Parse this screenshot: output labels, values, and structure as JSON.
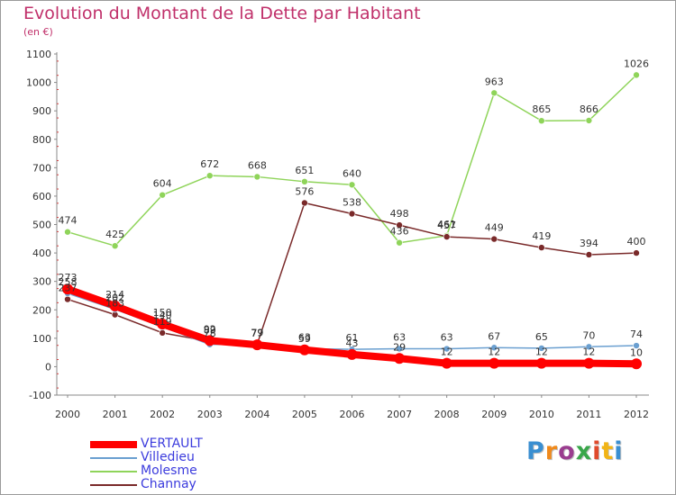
{
  "title": "Evolution du Montant de la Dette par Habitant",
  "subtitle": "(en €)",
  "brand": {
    "text": "Proxiti",
    "letter_colors": [
      "#3a8fd1",
      "#f08a1c",
      "#9a3d8f",
      "#39a64a",
      "#e04a2c",
      "#f1b416",
      "#3a8fd1"
    ]
  },
  "chart_data": {
    "type": "line",
    "title": "Evolution du Montant de la Dette par Habitant",
    "subtitle": "(en €)",
    "x": [
      "2000",
      "2001",
      "2002",
      "2003",
      "2004",
      "2005",
      "2006",
      "2007",
      "2008",
      "2009",
      "2010",
      "2011",
      "2012"
    ],
    "ylim": [
      -100,
      1100
    ],
    "yticks": [
      -100,
      0,
      100,
      200,
      300,
      400,
      500,
      600,
      700,
      800,
      900,
      1000,
      1100
    ],
    "grid": false,
    "legend_position": "bottom-left",
    "series": [
      {
        "name": "VERTAULT",
        "color": "#ff0000",
        "values": [
          273,
          214,
          150,
          92,
          77,
          59,
          43,
          29,
          12,
          12,
          12,
          12,
          10
        ],
        "labels": [
          "273",
          "214",
          "150",
          "92",
          "77",
          "59",
          "43",
          "29",
          "12",
          "12",
          "12",
          "12",
          "10"
        ]
      },
      {
        "name": "Villedieu",
        "color": "#6a9fd0",
        "values": [
          258,
          202,
          140,
          78,
          79,
          63,
          61,
          63,
          63,
          67,
          65,
          70,
          74
        ],
        "labels": [
          "258",
          "202",
          "140",
          "78",
          "79",
          "63",
          "61",
          "63",
          "63",
          "67",
          "65",
          "70",
          "74"
        ]
      },
      {
        "name": "Molesme",
        "color": "#8fd45a",
        "values": [
          474,
          425,
          604,
          672,
          668,
          651,
          640,
          436,
          461,
          963,
          865,
          866,
          1026
        ],
        "labels": [
          "474",
          "425",
          "604",
          "672",
          "668",
          "651",
          "640",
          "436",
          "461",
          "963",
          "865",
          "866",
          "1026"
        ]
      },
      {
        "name": "Channay",
        "color": "#7a2a2a",
        "values": [
          237,
          183,
          119,
          89,
          79,
          576,
          538,
          498,
          457,
          449,
          419,
          394,
          400
        ],
        "labels": [
          "237",
          "183",
          "119",
          "89",
          "79",
          "576",
          "538",
          "498",
          "457",
          "449",
          "419",
          "394",
          "400"
        ]
      }
    ]
  }
}
